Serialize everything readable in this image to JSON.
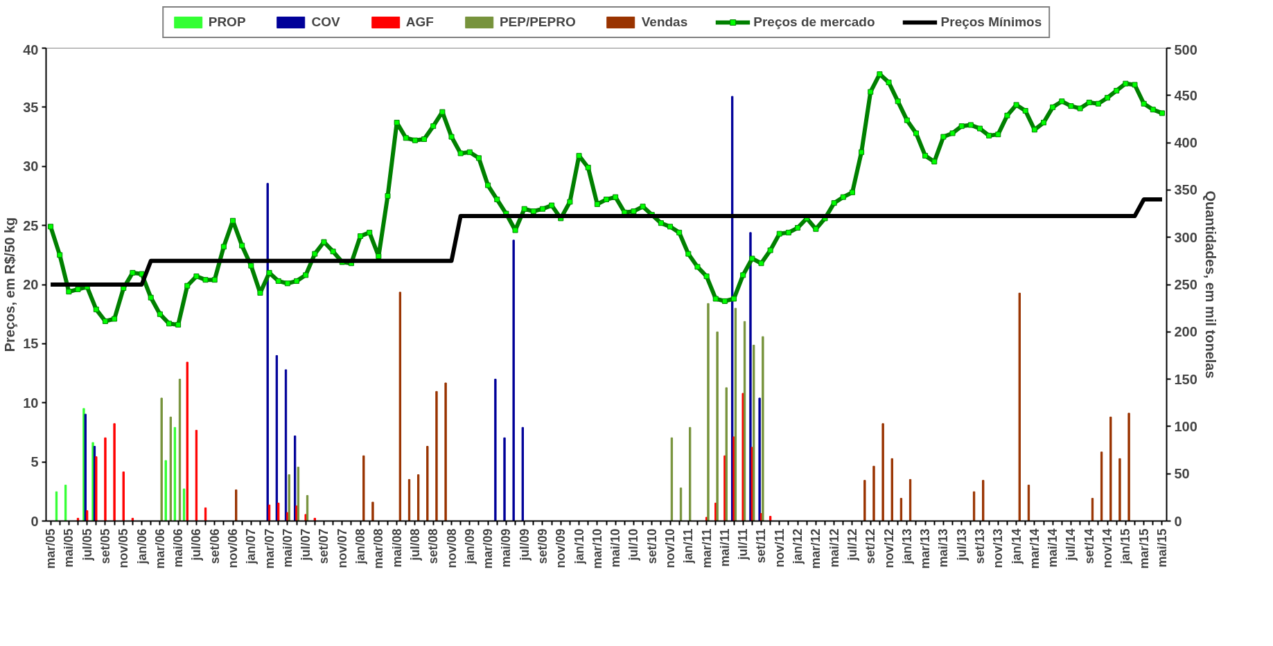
{
  "chart_data": {
    "type": "bar",
    "xlabel": null,
    "ylabel": "Preços, em R$/50 kg",
    "y2label": "Quantidades, em mil tonelas",
    "categories": [
      "mar/05",
      null,
      "mai/05",
      null,
      "jul/05",
      null,
      "set/05",
      null,
      "nov/05",
      null,
      "jan/06",
      null,
      "mar/06",
      null,
      "mai/06",
      null,
      "jul/06",
      null,
      "set/06",
      null,
      "nov/06",
      null,
      "jan/07",
      null,
      "mar/07",
      null,
      "mai/07",
      null,
      "jul/07",
      null,
      "set/07",
      null,
      "nov/07",
      null,
      "jan/08",
      null,
      "mar/08",
      null,
      "mai/08",
      null,
      "jul/08",
      null,
      "set/08",
      null,
      "nov/08",
      null,
      "jan/09",
      null,
      "mar/09",
      null,
      "mai/09",
      null,
      "jul/09",
      null,
      "set/09",
      null,
      "nov/09",
      null,
      "jan/10",
      null,
      "mar/10",
      null,
      "mai/10",
      null,
      "jul/10",
      null,
      "set/10",
      null,
      "nov/10",
      null,
      "jan/11",
      null,
      "mar/11",
      null,
      "mai/11",
      null,
      "jul/11",
      null,
      "set/11",
      null,
      "nov/11",
      null,
      "jan/12",
      null,
      "mar/12",
      null,
      "mai/12",
      null,
      "jul/12",
      null,
      "set/12",
      null,
      "nov/12",
      null,
      "jan/13",
      null,
      "mar/13",
      null,
      "mai/13",
      null,
      "jul/13",
      null,
      "set/13",
      null,
      "nov/13",
      null,
      "jan/14",
      null,
      "mar/14",
      null,
      "mai/14",
      null,
      "jul/14",
      null,
      "set/14",
      null,
      "nov/14",
      null,
      "jan/15",
      null,
      "mar/15",
      null,
      "mai/15"
    ],
    "ylim": [
      0,
      40
    ],
    "yticks": [
      0,
      5,
      10,
      15,
      20,
      25,
      30,
      35,
      40
    ],
    "y2lim": [
      0,
      500
    ],
    "y2ticks": [
      0,
      50,
      100,
      150,
      200,
      250,
      300,
      350,
      400,
      450,
      500
    ],
    "legend": "top",
    "grid": false,
    "series": [
      {
        "name": "PROP",
        "color": "#33ff33",
        "axis": "y2",
        "values": [
          null,
          31,
          38,
          null,
          119,
          83,
          null,
          null,
          null,
          null,
          null,
          null,
          null,
          64,
          99,
          34,
          null,
          null,
          null,
          null,
          null,
          null,
          null,
          null,
          null,
          null,
          null,
          null,
          null,
          null,
          null,
          null,
          null,
          null,
          null,
          null,
          null,
          null,
          null,
          null,
          null,
          null,
          null,
          null,
          null,
          null,
          null,
          null,
          null,
          null,
          null,
          null,
          null,
          null,
          null,
          null,
          null,
          null,
          null,
          null,
          null,
          null,
          null,
          null,
          null,
          null,
          null,
          null,
          null,
          null,
          null,
          null,
          null,
          null,
          null,
          null,
          null,
          null,
          null,
          null,
          null,
          null,
          null,
          null,
          null,
          null,
          null,
          null,
          null,
          null,
          null,
          null,
          null,
          null,
          null,
          null,
          null,
          null,
          null,
          null,
          null,
          null,
          null,
          null,
          null,
          null,
          null,
          null,
          null,
          null,
          null,
          null,
          null,
          null,
          null,
          null,
          null,
          null,
          null,
          null,
          null,
          null,
          null
        ]
      },
      {
        "name": "COV",
        "color": "#000099",
        "axis": "y2",
        "values": [
          null,
          null,
          null,
          null,
          113,
          79,
          null,
          null,
          null,
          null,
          null,
          null,
          null,
          null,
          null,
          null,
          null,
          null,
          null,
          null,
          null,
          null,
          null,
          null,
          357,
          175,
          160,
          90,
          null,
          null,
          null,
          null,
          null,
          null,
          null,
          null,
          null,
          null,
          null,
          null,
          null,
          null,
          null,
          null,
          null,
          null,
          null,
          null,
          null,
          150,
          88,
          297,
          99,
          null,
          null,
          null,
          null,
          null,
          null,
          null,
          null,
          null,
          null,
          null,
          null,
          null,
          null,
          null,
          null,
          null,
          null,
          null,
          null,
          null,
          null,
          449,
          null,
          305,
          130,
          null,
          null,
          null,
          null,
          null,
          null,
          null,
          null,
          null,
          null,
          null,
          null,
          null,
          null,
          null,
          null,
          null,
          null,
          null,
          null,
          null,
          null,
          null,
          null,
          null,
          null,
          null,
          null,
          null,
          null,
          null,
          null,
          null,
          null,
          null,
          null,
          null,
          null,
          null,
          null,
          null,
          null,
          null,
          null
        ]
      },
      {
        "name": "AGF",
        "color": "#ff0000",
        "axis": "y2",
        "values": [
          null,
          null,
          null,
          3,
          11,
          68,
          88,
          103,
          52,
          3,
          null,
          null,
          null,
          null,
          null,
          168,
          96,
          14,
          null,
          null,
          null,
          null,
          null,
          null,
          17,
          19,
          9,
          16,
          7,
          3,
          null,
          null,
          null,
          null,
          null,
          null,
          null,
          null,
          null,
          null,
          null,
          null,
          null,
          null,
          null,
          null,
          null,
          null,
          null,
          null,
          null,
          null,
          null,
          null,
          null,
          null,
          null,
          null,
          null,
          null,
          null,
          null,
          null,
          null,
          null,
          null,
          null,
          null,
          null,
          null,
          null,
          null,
          4,
          19,
          69,
          89,
          135,
          78,
          8,
          5,
          null,
          null,
          null,
          null,
          null,
          null,
          null,
          null,
          null,
          null,
          null,
          null,
          null,
          null,
          null,
          null,
          null,
          null,
          null,
          null,
          null,
          null,
          null,
          null,
          null,
          null,
          null,
          null,
          null,
          null,
          null,
          null,
          null,
          null,
          null,
          null,
          null,
          null,
          null,
          null,
          null,
          null,
          null
        ]
      },
      {
        "name": "PEP/PEPRO",
        "color": "#77933c",
        "axis": "y2",
        "values": [
          null,
          null,
          null,
          null,
          null,
          null,
          null,
          null,
          null,
          null,
          null,
          null,
          130,
          110,
          150,
          null,
          null,
          null,
          null,
          null,
          null,
          null,
          null,
          null,
          null,
          null,
          49,
          57,
          27,
          null,
          null,
          null,
          null,
          null,
          null,
          null,
          null,
          null,
          null,
          null,
          null,
          null,
          null,
          null,
          null,
          null,
          null,
          null,
          null,
          null,
          null,
          null,
          null,
          null,
          null,
          null,
          null,
          null,
          null,
          null,
          null,
          null,
          null,
          null,
          null,
          null,
          null,
          null,
          88,
          35,
          99,
          null,
          230,
          200,
          141,
          225,
          211,
          186,
          195,
          null,
          null,
          null,
          null,
          null,
          null,
          null,
          null,
          null,
          null,
          null,
          null,
          null,
          null,
          null,
          null,
          null,
          null,
          null,
          null,
          null,
          null,
          null,
          null,
          null,
          null,
          null,
          null,
          null,
          null,
          null,
          null,
          null,
          null,
          null,
          null,
          null,
          null,
          null,
          null,
          null,
          null,
          null,
          null
        ]
      },
      {
        "name": "Vendas",
        "color": "#993300",
        "axis": "y2",
        "values": [
          null,
          null,
          null,
          null,
          null,
          null,
          null,
          null,
          null,
          null,
          null,
          null,
          null,
          null,
          null,
          null,
          null,
          null,
          null,
          null,
          33,
          null,
          null,
          null,
          null,
          null,
          null,
          null,
          null,
          null,
          null,
          null,
          null,
          null,
          69,
          20,
          null,
          null,
          242,
          44,
          49,
          79,
          137,
          146,
          null,
          null,
          null,
          null,
          null,
          null,
          null,
          null,
          null,
          null,
          null,
          null,
          null,
          null,
          null,
          null,
          null,
          null,
          null,
          null,
          null,
          null,
          null,
          null,
          null,
          null,
          null,
          null,
          null,
          null,
          null,
          null,
          null,
          null,
          null,
          null,
          null,
          null,
          null,
          null,
          null,
          null,
          null,
          null,
          null,
          43,
          58,
          103,
          66,
          24,
          44,
          null,
          null,
          null,
          null,
          null,
          null,
          31,
          43,
          null,
          null,
          null,
          241,
          38,
          null,
          null,
          null,
          null,
          null,
          null,
          24,
          73,
          110,
          66,
          114,
          null,
          null,
          null,
          null
        ]
      },
      {
        "name": "Preços de mercado",
        "type": "line",
        "color": "#008000",
        "marker": "square",
        "values": [
          24.9,
          22.5,
          19.4,
          19.6,
          19.8,
          17.9,
          16.9,
          17.1,
          19.7,
          21.0,
          20.9,
          18.9,
          17.5,
          16.7,
          16.6,
          19.9,
          20.7,
          20.4,
          20.4,
          23.2,
          25.4,
          23.3,
          21.6,
          19.3,
          21.0,
          20.3,
          20.1,
          20.3,
          20.8,
          22.6,
          23.6,
          22.8,
          21.9,
          21.8,
          24.1,
          24.4,
          22.4,
          27.5,
          33.7,
          32.4,
          32.2,
          32.3,
          33.4,
          34.6,
          32.5,
          31.1,
          31.2,
          30.7,
          28.4,
          27.2,
          26.0,
          24.6,
          26.4,
          26.2,
          26.4,
          26.7,
          25.6,
          27.0,
          30.9,
          29.9,
          26.8,
          27.2,
          27.4,
          26.1,
          26.2,
          26.6,
          25.9,
          25.2,
          24.9,
          24.4,
          22.6,
          21.5,
          20.7,
          18.8,
          18.6,
          18.8,
          20.8,
          22.2,
          21.8,
          22.9,
          24.3,
          24.4,
          24.8,
          25.6,
          24.7,
          25.6,
          26.9,
          27.4,
          27.8,
          31.2,
          36.3,
          37.8,
          37.1,
          35.5,
          33.9,
          32.8,
          30.9,
          30.4,
          32.5,
          32.8,
          33.4,
          33.5,
          33.2,
          32.6,
          32.7,
          34.3,
          35.2,
          34.7,
          33.1,
          33.7,
          35.0,
          35.5,
          35.1,
          34.9,
          35.4,
          35.3,
          35.8,
          36.4,
          37.0,
          36.9,
          35.3,
          34.8,
          34.5
        ]
      },
      {
        "name": "Preços Mínimos",
        "type": "line",
        "color": "#000000",
        "marker": "none",
        "values": [
          20,
          20,
          20,
          20,
          20,
          20,
          20,
          20,
          20,
          20,
          20,
          22,
          22,
          22,
          22,
          22,
          22,
          22,
          22,
          22,
          22,
          22,
          22,
          22,
          22,
          22,
          22,
          22,
          22,
          22,
          22,
          22,
          22,
          22,
          22,
          22,
          22,
          22,
          22,
          22,
          22,
          22,
          22,
          22,
          22,
          25.8,
          25.8,
          25.8,
          25.8,
          25.8,
          25.8,
          25.8,
          25.8,
          25.8,
          25.8,
          25.8,
          25.8,
          25.8,
          25.8,
          25.8,
          25.8,
          25.8,
          25.8,
          25.8,
          25.8,
          25.8,
          25.8,
          25.8,
          25.8,
          25.8,
          25.8,
          25.8,
          25.8,
          25.8,
          25.8,
          25.8,
          25.8,
          25.8,
          25.8,
          25.8,
          25.8,
          25.8,
          25.8,
          25.8,
          25.8,
          25.8,
          25.8,
          25.8,
          25.8,
          25.8,
          25.8,
          25.8,
          25.8,
          25.8,
          25.8,
          25.8,
          25.8,
          25.8,
          25.8,
          25.8,
          25.8,
          25.8,
          25.8,
          25.8,
          25.8,
          25.8,
          25.8,
          25.8,
          25.8,
          25.8,
          25.8,
          25.8,
          25.8,
          25.8,
          25.8,
          25.8,
          25.8,
          25.8,
          25.8,
          25.8,
          27.2,
          27.2,
          27.2
        ]
      }
    ]
  }
}
